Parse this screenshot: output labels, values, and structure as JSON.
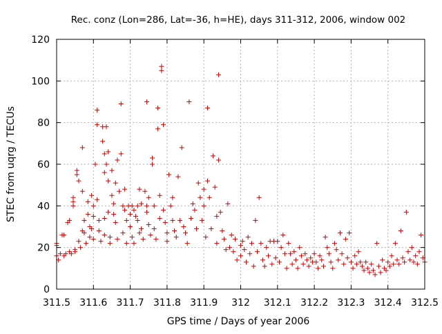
{
  "chart_data": {
    "type": "scatter",
    "title": "Rec. conz (Lon=286, Lat=-36, h=HE), days 311-312, 2006, window 002",
    "xlabel": "GPS time / Days of year 2006",
    "ylabel": "STEC from uqrg / TECUs",
    "xlim": [
      311.5,
      312.5
    ],
    "ylim": [
      0,
      120
    ],
    "xticks": [
      "311.5",
      "311.6",
      "311.7",
      "311.8",
      "311.9",
      "312",
      "312.1",
      "312.2",
      "312.3",
      "312.4",
      "312.5"
    ],
    "yticks": [
      "0",
      "20",
      "40",
      "60",
      "80",
      "100",
      "120"
    ],
    "grid": true,
    "marker": "+",
    "colors": {
      "points": "#cc0000",
      "grid": "#b0b0b0",
      "axis": "#000000"
    },
    "points": [
      [
        311.5,
        22
      ],
      [
        311.5,
        21
      ],
      [
        311.5,
        16
      ],
      [
        311.505,
        14
      ],
      [
        311.51,
        17
      ],
      [
        311.515,
        26
      ],
      [
        311.52,
        26
      ],
      [
        311.52,
        16
      ],
      [
        311.525,
        17
      ],
      [
        311.53,
        32
      ],
      [
        311.535,
        33
      ],
      [
        311.535,
        18
      ],
      [
        311.54,
        17
      ],
      [
        311.545,
        44
      ],
      [
        311.545,
        42
      ],
      [
        311.545,
        40
      ],
      [
        311.55,
        19
      ],
      [
        311.55,
        18
      ],
      [
        311.555,
        57
      ],
      [
        311.555,
        55
      ],
      [
        311.56,
        52
      ],
      [
        311.56,
        23
      ],
      [
        311.565,
        20
      ],
      [
        311.57,
        68
      ],
      [
        311.57,
        47
      ],
      [
        311.57,
        28
      ],
      [
        311.575,
        33
      ],
      [
        311.575,
        27
      ],
      [
        311.58,
        22
      ],
      [
        311.585,
        42
      ],
      [
        311.585,
        36
      ],
      [
        311.59,
        30
      ],
      [
        311.59,
        25
      ],
      [
        311.595,
        45
      ],
      [
        311.595,
        29
      ],
      [
        311.6,
        40
      ],
      [
        311.6,
        35
      ],
      [
        311.6,
        24
      ],
      [
        311.605,
        60
      ],
      [
        311.61,
        86
      ],
      [
        311.61,
        79
      ],
      [
        311.61,
        43
      ],
      [
        311.615,
        33
      ],
      [
        311.615,
        28
      ],
      [
        311.62,
        23
      ],
      [
        311.625,
        78
      ],
      [
        311.625,
        71
      ],
      [
        311.63,
        65
      ],
      [
        311.63,
        56
      ],
      [
        311.63,
        34
      ],
      [
        311.63,
        26
      ],
      [
        311.635,
        78
      ],
      [
        311.635,
        60
      ],
      [
        311.64,
        66
      ],
      [
        311.64,
        52
      ],
      [
        311.64,
        37
      ],
      [
        311.645,
        25
      ],
      [
        311.645,
        22
      ],
      [
        311.65,
        57
      ],
      [
        311.65,
        45
      ],
      [
        311.655,
        41
      ],
      [
        311.655,
        36
      ],
      [
        311.66,
        51
      ],
      [
        311.66,
        32
      ],
      [
        311.665,
        62
      ],
      [
        311.665,
        24
      ],
      [
        311.67,
        47
      ],
      [
        311.675,
        89
      ],
      [
        311.675,
        65
      ],
      [
        311.68,
        40
      ],
      [
        311.68,
        27
      ],
      [
        311.685,
        48
      ],
      [
        311.685,
        38
      ],
      [
        311.69,
        33
      ],
      [
        311.69,
        22
      ],
      [
        311.695,
        40
      ],
      [
        311.7,
        36
      ],
      [
        311.7,
        30
      ],
      [
        311.705,
        40
      ],
      [
        311.705,
        25
      ],
      [
        311.71,
        38
      ],
      [
        311.71,
        22
      ],
      [
        311.715,
        35
      ],
      [
        311.72,
        40
      ],
      [
        311.72,
        33
      ],
      [
        311.725,
        48
      ],
      [
        311.725,
        27
      ],
      [
        311.73,
        41
      ],
      [
        311.73,
        29
      ],
      [
        311.735,
        24
      ],
      [
        311.74,
        47
      ],
      [
        311.745,
        90
      ],
      [
        311.745,
        40
      ],
      [
        311.745,
        37
      ],
      [
        311.75,
        44
      ],
      [
        311.75,
        31
      ],
      [
        311.755,
        26
      ],
      [
        311.76,
        63
      ],
      [
        311.76,
        60
      ],
      [
        311.765,
        40
      ],
      [
        311.765,
        29
      ],
      [
        311.77,
        24
      ],
      [
        311.775,
        87
      ],
      [
        311.775,
        77
      ],
      [
        311.78,
        45
      ],
      [
        311.78,
        34
      ],
      [
        311.785,
        107
      ],
      [
        311.785,
        105
      ],
      [
        311.79,
        79
      ],
      [
        311.79,
        38
      ],
      [
        311.795,
        32
      ],
      [
        311.8,
        27
      ],
      [
        311.8,
        23
      ],
      [
        311.805,
        55
      ],
      [
        311.81,
        40
      ],
      [
        311.815,
        44
      ],
      [
        311.815,
        33
      ],
      [
        311.82,
        28
      ],
      [
        311.825,
        25
      ],
      [
        311.83,
        54
      ],
      [
        311.835,
        33
      ],
      [
        311.84,
        68
      ],
      [
        311.845,
        30
      ],
      [
        311.85,
        27
      ],
      [
        311.855,
        22
      ],
      [
        311.86,
        90
      ],
      [
        311.865,
        34
      ],
      [
        311.87,
        41
      ],
      [
        311.875,
        38
      ],
      [
        311.88,
        29
      ],
      [
        311.885,
        51
      ],
      [
        311.89,
        44
      ],
      [
        311.895,
        33
      ],
      [
        311.9,
        48
      ],
      [
        311.9,
        40
      ],
      [
        311.905,
        25
      ],
      [
        311.91,
        87
      ],
      [
        311.91,
        52
      ],
      [
        311.915,
        44
      ],
      [
        311.92,
        29
      ],
      [
        311.925,
        64
      ],
      [
        311.93,
        49
      ],
      [
        311.935,
        35
      ],
      [
        311.935,
        22
      ],
      [
        311.94,
        103
      ],
      [
        311.94,
        62
      ],
      [
        311.945,
        37
      ],
      [
        311.95,
        28
      ],
      [
        311.955,
        24
      ],
      [
        311.96,
        19
      ],
      [
        311.965,
        41
      ],
      [
        311.97,
        20
      ],
      [
        311.975,
        26
      ],
      [
        311.98,
        18
      ],
      [
        311.985,
        24
      ],
      [
        311.99,
        14
      ],
      [
        312.0,
        21
      ],
      [
        312.0,
        16
      ],
      [
        312.005,
        23
      ],
      [
        312.01,
        19
      ],
      [
        312.015,
        13
      ],
      [
        312.02,
        25
      ],
      [
        312.025,
        17
      ],
      [
        312.03,
        22
      ],
      [
        312.035,
        11
      ],
      [
        312.04,
        33
      ],
      [
        312.045,
        18
      ],
      [
        312.05,
        44
      ],
      [
        312.055,
        22
      ],
      [
        312.06,
        14
      ],
      [
        312.065,
        11
      ],
      [
        312.07,
        20
      ],
      [
        312.075,
        16
      ],
      [
        312.08,
        23
      ],
      [
        312.085,
        12
      ],
      [
        312.09,
        23
      ],
      [
        312.095,
        15
      ],
      [
        312.1,
        23
      ],
      [
        312.105,
        13
      ],
      [
        312.11,
        20
      ],
      [
        312.115,
        26
      ],
      [
        312.12,
        17
      ],
      [
        312.125,
        10
      ],
      [
        312.13,
        22
      ],
      [
        312.135,
        17
      ],
      [
        312.14,
        12
      ],
      [
        312.145,
        18
      ],
      [
        312.15,
        14
      ],
      [
        312.155,
        10
      ],
      [
        312.16,
        20
      ],
      [
        312.165,
        16
      ],
      [
        312.17,
        12
      ],
      [
        312.175,
        17
      ],
      [
        312.18,
        14
      ],
      [
        312.185,
        11
      ],
      [
        312.19,
        15
      ],
      [
        312.195,
        13
      ],
      [
        312.2,
        17
      ],
      [
        312.205,
        13
      ],
      [
        312.21,
        10
      ],
      [
        312.215,
        16
      ],
      [
        312.22,
        14
      ],
      [
        312.225,
        11
      ],
      [
        312.23,
        25
      ],
      [
        312.235,
        20
      ],
      [
        312.24,
        17
      ],
      [
        312.245,
        13
      ],
      [
        312.25,
        10
      ],
      [
        312.255,
        22
      ],
      [
        312.26,
        19
      ],
      [
        312.265,
        14
      ],
      [
        312.27,
        27
      ],
      [
        312.275,
        17
      ],
      [
        312.28,
        12
      ],
      [
        312.285,
        24
      ],
      [
        312.29,
        15
      ],
      [
        312.295,
        27
      ],
      [
        312.3,
        13
      ],
      [
        312.305,
        10
      ],
      [
        312.31,
        16
      ],
      [
        312.315,
        12
      ],
      [
        312.32,
        18
      ],
      [
        312.325,
        13
      ],
      [
        312.33,
        11
      ],
      [
        312.335,
        9
      ],
      [
        312.34,
        13
      ],
      [
        312.345,
        10
      ],
      [
        312.35,
        8
      ],
      [
        312.355,
        12
      ],
      [
        312.36,
        9
      ],
      [
        312.365,
        7
      ],
      [
        312.37,
        22
      ],
      [
        312.375,
        11
      ],
      [
        312.38,
        8
      ],
      [
        312.385,
        14
      ],
      [
        312.39,
        10
      ],
      [
        312.395,
        9
      ],
      [
        312.4,
        13
      ],
      [
        312.405,
        11
      ],
      [
        312.41,
        16
      ],
      [
        312.415,
        12
      ],
      [
        312.42,
        22
      ],
      [
        312.425,
        14
      ],
      [
        312.43,
        12
      ],
      [
        312.435,
        28
      ],
      [
        312.44,
        15
      ],
      [
        312.445,
        13
      ],
      [
        312.45,
        37
      ],
      [
        312.455,
        18
      ],
      [
        312.46,
        14
      ],
      [
        312.465,
        20
      ],
      [
        312.47,
        13
      ],
      [
        312.475,
        16
      ],
      [
        312.48,
        12
      ],
      [
        312.485,
        18
      ],
      [
        312.49,
        26
      ],
      [
        312.495,
        15
      ],
      [
        312.5,
        13
      ]
    ]
  }
}
